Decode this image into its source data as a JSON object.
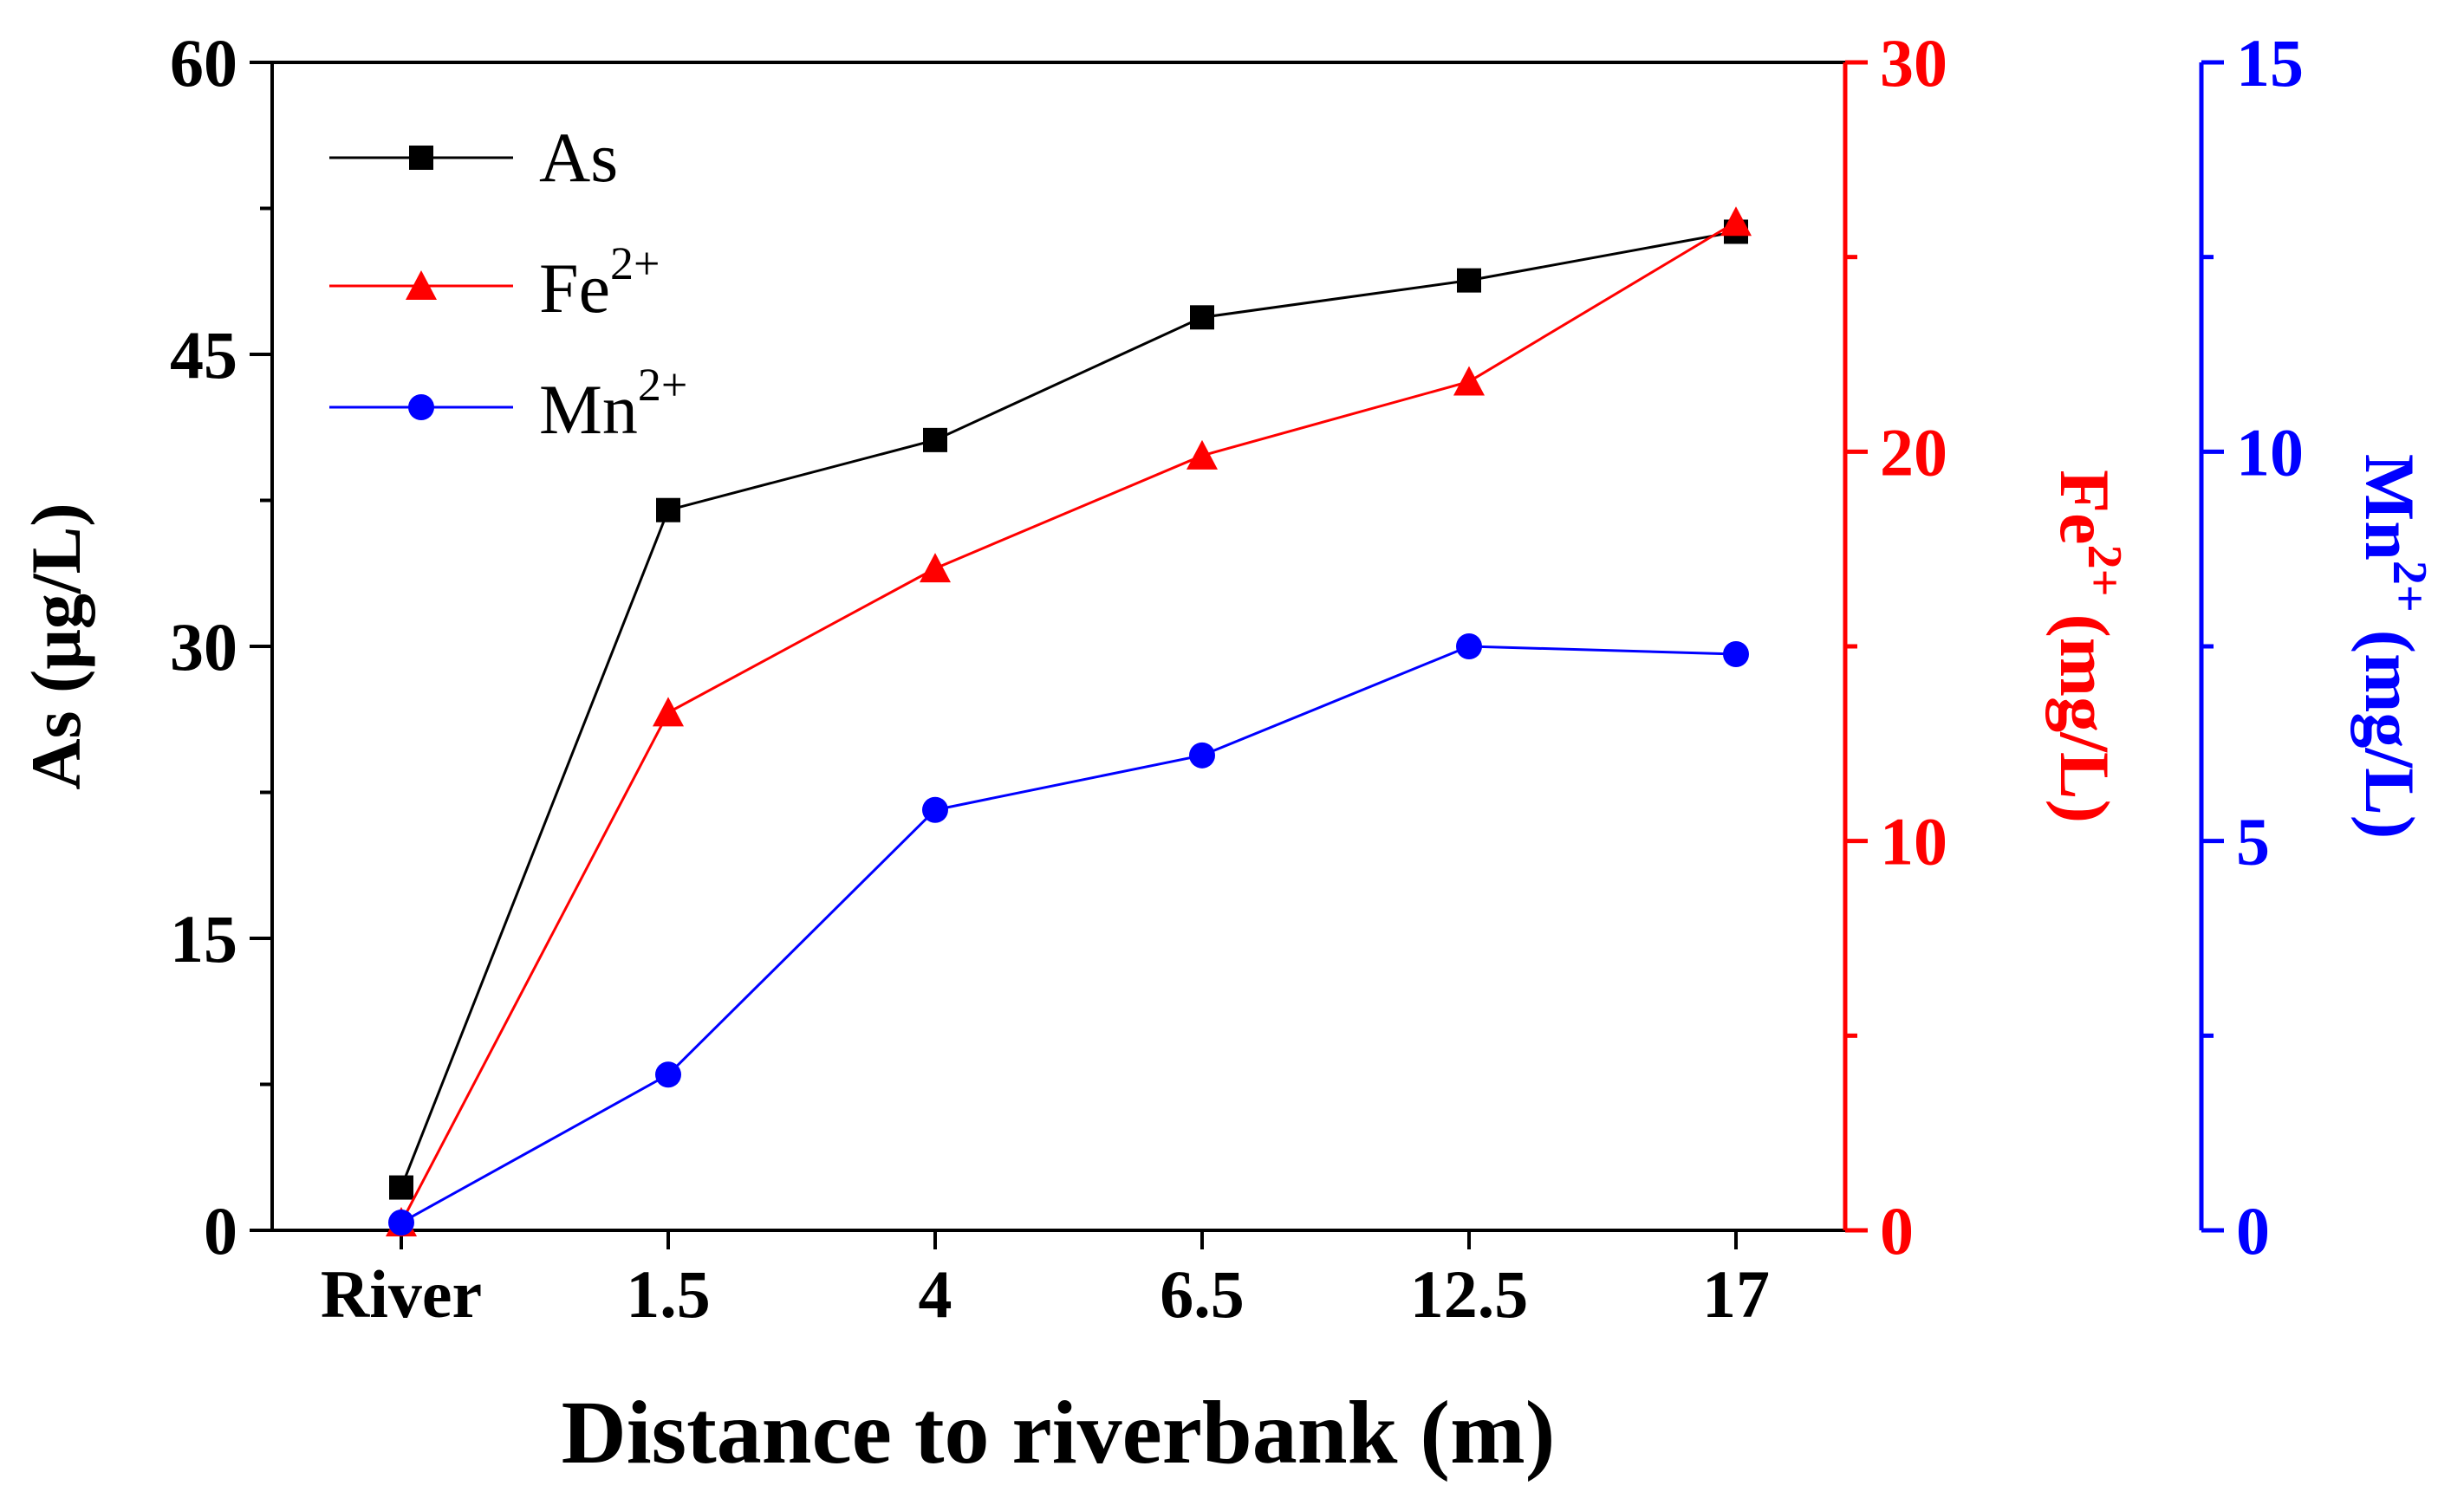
{
  "colors": {
    "as": "#000000",
    "fe": "#ff0000",
    "mn": "#0000ff"
  },
  "chart_data": {
    "type": "line",
    "xlabel": "Distance to riverbank (m)",
    "categories": [
      "River",
      "1.5",
      "4",
      "6.5",
      "12.5",
      "17"
    ],
    "axes": {
      "left": {
        "label_main": "As (μg/L)",
        "ylim": [
          0,
          60
        ],
        "ticks": [
          "0",
          "15",
          "30",
          "45",
          "60"
        ]
      },
      "fe": {
        "label_base": "Fe",
        "label_sup": "2+",
        "label_unit": "(mg/L)",
        "ylim": [
          0,
          30
        ],
        "ticks": [
          "0",
          "10",
          "20",
          "30"
        ]
      },
      "mn": {
        "label_base": "Mn",
        "label_sup": "2+",
        "label_unit": "(mg/L)",
        "ylim": [
          0,
          15
        ],
        "ticks": [
          "0",
          "5",
          "10",
          "15"
        ]
      }
    },
    "series": [
      {
        "key": "as",
        "name": "As",
        "name_sup": "",
        "axis": "left",
        "marker": "square",
        "values": [
          2.2,
          37.0,
          40.6,
          46.9,
          48.8,
          51.3
        ]
      },
      {
        "key": "fe",
        "name": "Fe",
        "name_sup": "2+",
        "axis": "fe",
        "marker": "triangle",
        "values": [
          0.2,
          13.3,
          17.0,
          19.9,
          21.8,
          25.9
        ]
      },
      {
        "key": "mn",
        "name": "Mn",
        "name_sup": "2+",
        "axis": "mn",
        "marker": "circle",
        "values": [
          0.1,
          2.0,
          5.4,
          6.1,
          7.5,
          7.4
        ]
      }
    ]
  }
}
